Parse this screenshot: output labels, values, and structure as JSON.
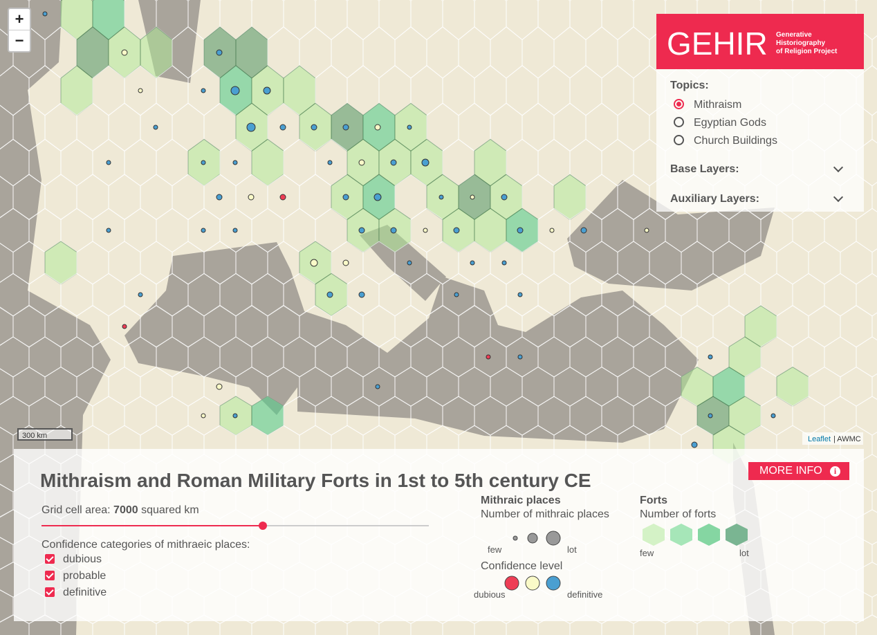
{
  "map": {
    "zoom_in": "+",
    "zoom_out": "−",
    "scale": "300 km",
    "attribution": {
      "link": "Leaflet",
      "source": "| AWMC"
    }
  },
  "header": {
    "logo": "GEHIR",
    "tagline": [
      "Generative",
      "Historiography",
      "of Religion Project"
    ]
  },
  "sidebar": {
    "topics_label": "Topics:",
    "topics": [
      "Mithraism",
      "Egyptian Gods",
      "Church Buildings"
    ],
    "base_layers": "Base Layers:",
    "auxiliary_layers": "Auxiliary Layers:"
  },
  "panel": {
    "title": "Mithraism and Roman Military Forts in 1st to 5th century CE",
    "more_info": "MORE INFO",
    "grid_label": "Grid cell area:",
    "grid_value": 7000,
    "grid_unit": "squared km",
    "confidence_label": "Confidence categories of mithraeic places:",
    "confidence_options": [
      "dubious",
      "probable",
      "definitive"
    ]
  },
  "legend": {
    "places": {
      "title": "Mithraic places",
      "size_label": "Number of mithraic places",
      "few": "few",
      "lot": "lot",
      "confidence_label": "Confidence level",
      "low": "dubious",
      "high": "definitive"
    },
    "forts": {
      "title": "Forts",
      "size_label": "Number of forts",
      "few": "few",
      "lot": "lot"
    }
  }
}
